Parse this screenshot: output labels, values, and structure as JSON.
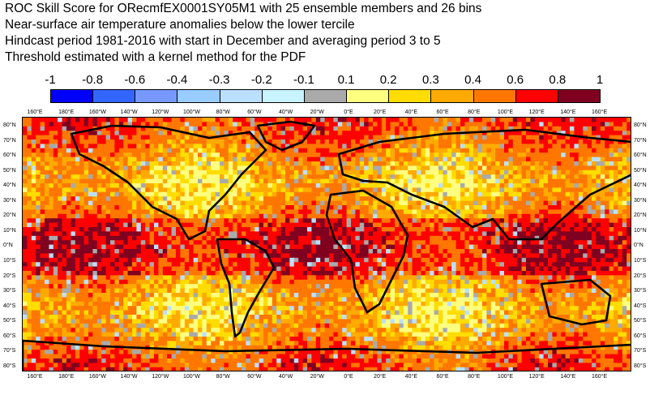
{
  "title": {
    "line1": "ROC Skill Score for ORecmfEX0001SY05M1 with 25 ensemble members and 26 bins",
    "line2": "Near-surface air temperature anomalies below the lower tercile",
    "line3": "Hindcast period 1981-2016 with start in December and averaging period  3 to  5",
    "line4": "Threshold estimated with a kernel method for the PDF"
  },
  "legend": {
    "labels": [
      "-1",
      "-0.8",
      "-0.6",
      "-0.4",
      "-0.3",
      "-0.2",
      "-0.1",
      "0.1",
      "0.2",
      "0.3",
      "0.4",
      "0.6",
      "0.8",
      "1"
    ],
    "colors": [
      "#0000ff",
      "#3366ff",
      "#7799ff",
      "#99ccff",
      "#bbe0ff",
      "#c8f4ff",
      "#aaaaaa",
      "#ffff80",
      "#ffdd00",
      "#ffaa00",
      "#ff7700",
      "#ff0000",
      "#800020"
    ]
  },
  "axes": {
    "lon_labels": [
      "160°E",
      "180°E",
      "160°W",
      "140°W",
      "120°W",
      "100°W",
      "80°W",
      "60°W",
      "40°W",
      "20°W",
      "0°E",
      "20°E",
      "40°E",
      "60°E",
      "80°E",
      "100°E",
      "120°E",
      "140°E",
      "160°E"
    ],
    "lat_labels": [
      "80°N",
      "70°N",
      "60°N",
      "50°N",
      "40°N",
      "30°N",
      "20°N",
      "10°N",
      "0°N",
      "10°S",
      "20°S",
      "30°S",
      "40°S",
      "50°S",
      "60°S",
      "70°S",
      "80°S"
    ]
  }
}
